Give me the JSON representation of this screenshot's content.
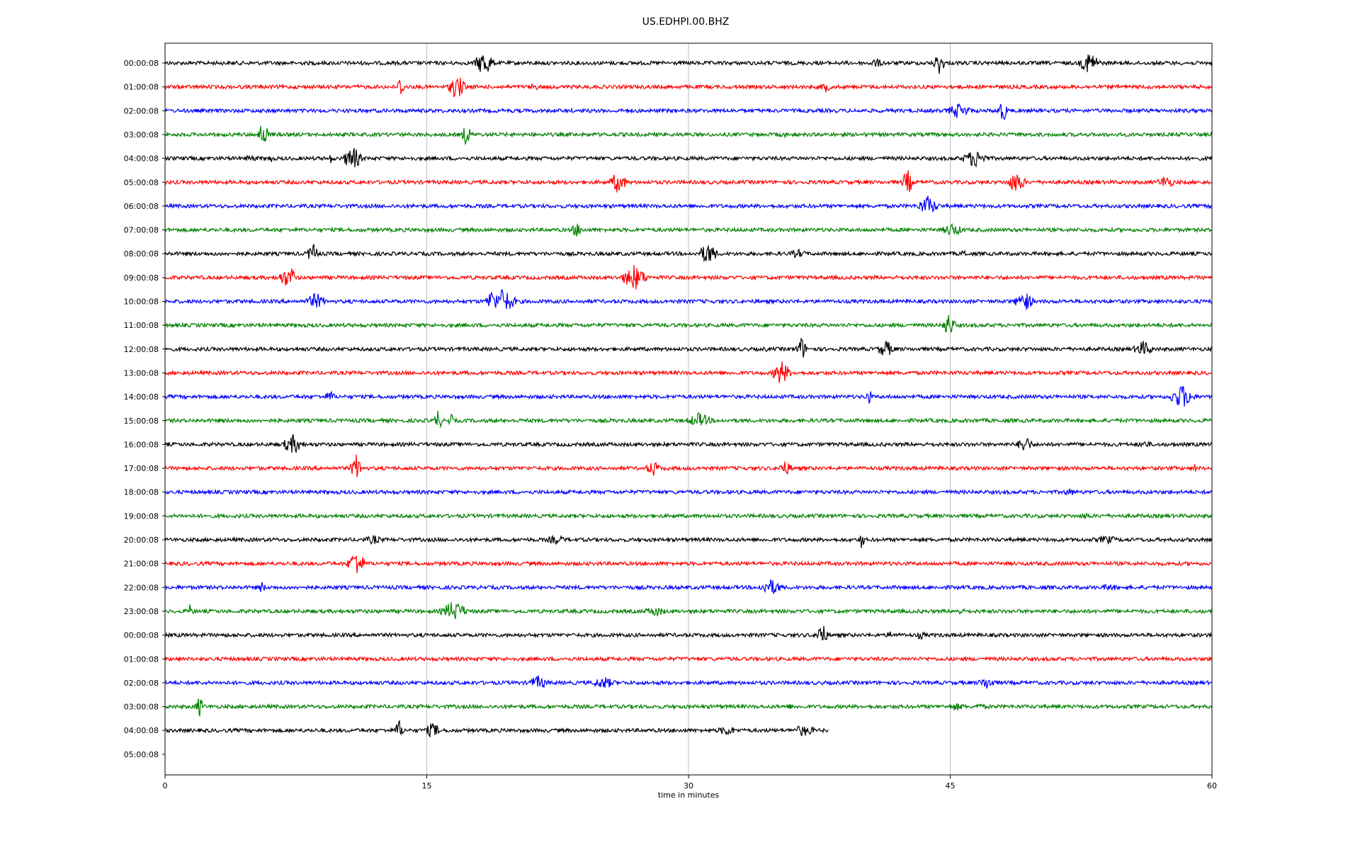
{
  "chart_data": {
    "type": "line",
    "title": "US.EDHPI.00.BHZ",
    "xlabel": "time in minutes",
    "ylabel": "",
    "xlim": [
      0,
      60
    ],
    "x_ticks": [
      0,
      15,
      30,
      45,
      60
    ],
    "grid": "vertical",
    "line_colors": [
      "#000000",
      "#ff0000",
      "#0000ff",
      "#008000"
    ],
    "rows": [
      {
        "label": "00:00:08",
        "color": "#000000",
        "end_minute": 60
      },
      {
        "label": "01:00:08",
        "color": "#ff0000",
        "end_minute": 60
      },
      {
        "label": "02:00:08",
        "color": "#0000ff",
        "end_minute": 60
      },
      {
        "label": "03:00:08",
        "color": "#008000",
        "end_minute": 60
      },
      {
        "label": "04:00:08",
        "color": "#000000",
        "end_minute": 60
      },
      {
        "label": "05:00:08",
        "color": "#ff0000",
        "end_minute": 60
      },
      {
        "label": "06:00:08",
        "color": "#0000ff",
        "end_minute": 60
      },
      {
        "label": "07:00:08",
        "color": "#008000",
        "end_minute": 60
      },
      {
        "label": "08:00:08",
        "color": "#000000",
        "end_minute": 60
      },
      {
        "label": "09:00:08",
        "color": "#ff0000",
        "end_minute": 60
      },
      {
        "label": "10:00:08",
        "color": "#0000ff",
        "end_minute": 60
      },
      {
        "label": "11:00:08",
        "color": "#008000",
        "end_minute": 60
      },
      {
        "label": "12:00:08",
        "color": "#000000",
        "end_minute": 60
      },
      {
        "label": "13:00:08",
        "color": "#ff0000",
        "end_minute": 60
      },
      {
        "label": "14:00:08",
        "color": "#0000ff",
        "end_minute": 60
      },
      {
        "label": "15:00:08",
        "color": "#008000",
        "end_minute": 60
      },
      {
        "label": "16:00:08",
        "color": "#000000",
        "end_minute": 60
      },
      {
        "label": "17:00:08",
        "color": "#ff0000",
        "end_minute": 60
      },
      {
        "label": "18:00:08",
        "color": "#0000ff",
        "end_minute": 60
      },
      {
        "label": "19:00:08",
        "color": "#008000",
        "end_minute": 60
      },
      {
        "label": "20:00:08",
        "color": "#000000",
        "end_minute": 60
      },
      {
        "label": "21:00:08",
        "color": "#ff0000",
        "end_minute": 60
      },
      {
        "label": "22:00:08",
        "color": "#0000ff",
        "end_minute": 60
      },
      {
        "label": "23:00:08",
        "color": "#008000",
        "end_minute": 60
      },
      {
        "label": "00:00:08",
        "color": "#000000",
        "end_minute": 60
      },
      {
        "label": "01:00:08",
        "color": "#ff0000",
        "end_minute": 60
      },
      {
        "label": "02:00:08",
        "color": "#0000ff",
        "end_minute": 60
      },
      {
        "label": "03:00:08",
        "color": "#008000",
        "end_minute": 60
      },
      {
        "label": "04:00:08",
        "color": "#000000",
        "end_minute": 38
      },
      {
        "label": "05:00:08",
        "color": "#ff0000",
        "end_minute": 0
      }
    ]
  }
}
